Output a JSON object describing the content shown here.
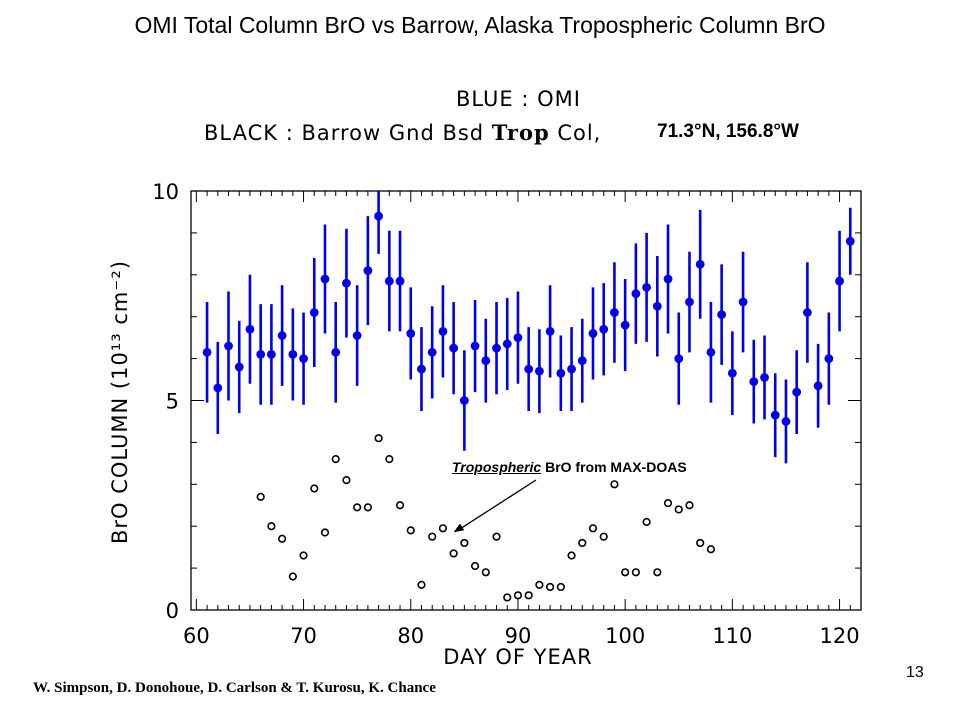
{
  "slide": {
    "title": "OMI Total Column BrO vs Barrow, Alaska Tropospheric Column BrO",
    "authors": "W. Simpson, D. Donohoue, D. Carlson & T. Kurosu, K. Chance",
    "page_number": "13"
  },
  "chart_data": {
    "type": "scatter",
    "legend": {
      "blue_label": "BLUE : OMI",
      "black_label_prefix": "BLACK : Barrow Gnd Bsd ",
      "black_label_trop": "Trop",
      "black_label_suffix": " Col,",
      "location": "71.3°N, 156.8°W"
    },
    "xlabel": "DAY OF YEAR",
    "ylabel": "BrO COLUMN (10¹³ cm⁻²)",
    "xlim": [
      59.5,
      122
    ],
    "ylim": [
      0,
      10
    ],
    "xticks": [
      "60",
      "70",
      "80",
      "90",
      "100",
      "110",
      "120"
    ],
    "yticks": [
      "0",
      "5",
      "10"
    ],
    "annotation": {
      "text_underlined": "Tropospheric",
      "text_rest": " BrO from MAX-DOAS",
      "points_to": {
        "x": 84,
        "y": 2.0
      }
    },
    "series": [
      {
        "name": "OMI",
        "color": "#0000ee",
        "marker": "filled-circle",
        "x": [
          61,
          62,
          63,
          64,
          65,
          66,
          67,
          68,
          69,
          70,
          71,
          72,
          73,
          74,
          75,
          76,
          77,
          78,
          79,
          80,
          81,
          82,
          83,
          84,
          85,
          86,
          87,
          88,
          89,
          90,
          91,
          92,
          93,
          94,
          95,
          96,
          97,
          98,
          99,
          100,
          101,
          102,
          103,
          104,
          105,
          106,
          107,
          108,
          109,
          110,
          111,
          112,
          113,
          114,
          115,
          116,
          117,
          118,
          119,
          120,
          121
        ],
        "y": [
          6.15,
          5.3,
          6.3,
          5.8,
          6.7,
          6.1,
          6.1,
          6.55,
          6.1,
          6.0,
          7.1,
          7.9,
          6.15,
          7.8,
          6.55,
          8.1,
          9.4,
          7.85,
          7.85,
          6.6,
          5.75,
          6.15,
          6.65,
          6.25,
          5.0,
          6.3,
          5.95,
          6.25,
          6.35,
          6.5,
          5.75,
          5.7,
          6.65,
          5.65,
          5.75,
          5.95,
          6.6,
          6.7,
          7.1,
          6.8,
          7.55,
          7.7,
          7.25,
          7.9,
          6.0,
          7.35,
          8.25,
          6.15,
          7.05,
          5.65,
          7.35,
          5.45,
          5.55,
          4.65,
          4.5,
          5.2,
          7.1,
          5.35,
          6.0,
          7.85,
          8.8
        ],
        "yerr": [
          1.2,
          1.1,
          1.3,
          1.1,
          1.3,
          1.2,
          1.2,
          1.2,
          1.1,
          1.1,
          1.3,
          1.3,
          1.2,
          1.3,
          1.2,
          1.3,
          0.9,
          1.2,
          1.2,
          1.1,
          1.0,
          1.1,
          1.1,
          1.1,
          1.2,
          1.1,
          1.0,
          1.1,
          1.1,
          1.1,
          1.0,
          1.0,
          1.1,
          0.9,
          1.0,
          1.0,
          1.1,
          1.1,
          1.2,
          1.1,
          1.2,
          1.3,
          1.2,
          1.3,
          1.1,
          1.2,
          1.3,
          1.2,
          1.2,
          1.0,
          1.2,
          1.0,
          1.0,
          1.0,
          1.0,
          1.0,
          1.2,
          1.0,
          1.1,
          1.2,
          0.8
        ]
      },
      {
        "name": "Barrow Gnd Bsd Trop Col",
        "color": "#000000",
        "marker": "open-circle",
        "x": [
          66,
          67,
          68,
          69,
          70,
          71,
          72,
          73,
          74,
          75,
          76,
          77,
          78,
          79,
          80,
          81,
          82,
          83,
          84,
          85,
          86,
          87,
          88,
          89,
          90,
          91,
          92,
          93,
          94,
          95,
          96,
          97,
          98,
          99,
          100,
          101,
          102,
          103,
          104,
          105,
          106,
          107,
          108
        ],
        "y": [
          2.7,
          2.0,
          1.7,
          0.8,
          1.3,
          2.9,
          1.85,
          3.6,
          3.1,
          2.45,
          2.45,
          4.1,
          3.6,
          2.5,
          1.9,
          0.6,
          1.75,
          1.95,
          1.35,
          1.6,
          1.05,
          0.9,
          1.75,
          0.3,
          0.35,
          0.35,
          0.6,
          0.55,
          0.55,
          1.3,
          1.6,
          1.95,
          1.75,
          3.0,
          0.9,
          0.9,
          2.1,
          0.9,
          2.55,
          2.4,
          2.5,
          1.6,
          1.45
        ]
      }
    ]
  }
}
